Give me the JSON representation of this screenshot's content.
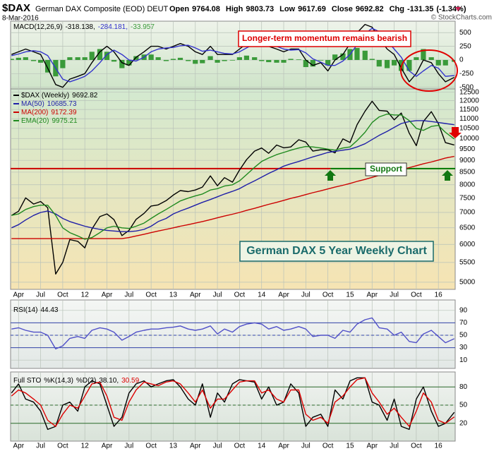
{
  "header": {
    "symbol": "$DAX",
    "name": "German DAX Composite (EOD) DEUT",
    "date": "8-Mar-2016",
    "copyright": "© StockCharts.com",
    "stats": [
      {
        "label": "Open",
        "value": 9764.08
      },
      {
        "label": "High",
        "value": 9803.73
      },
      {
        "label": "Low",
        "value": 9617.69
      },
      {
        "label": "Close",
        "value": 9692.82
      },
      {
        "label": "Chg",
        "value": -131.35
      }
    ],
    "change_pct": "(-1.34%)"
  },
  "chart_data": {
    "type": "line",
    "grid": true,
    "x": [
      2011.17,
      2011.25,
      2011.33,
      2011.42,
      2011.5,
      2011.58,
      2011.67,
      2011.75,
      2011.83,
      2011.92,
      2012.0,
      2012.08,
      2012.17,
      2012.25,
      2012.33,
      2012.42,
      2012.5,
      2012.58,
      2012.67,
      2012.75,
      2012.83,
      2012.92,
      2013.0,
      2013.08,
      2013.17,
      2013.25,
      2013.33,
      2013.42,
      2013.5,
      2013.58,
      2013.67,
      2013.75,
      2013.83,
      2013.92,
      2014.0,
      2014.08,
      2014.17,
      2014.25,
      2014.33,
      2014.42,
      2014.5,
      2014.58,
      2014.67,
      2014.75,
      2014.83,
      2014.92,
      2015.0,
      2015.08,
      2015.17,
      2015.25,
      2015.33,
      2015.42,
      2015.5,
      2015.58,
      2015.67,
      2015.75,
      2015.83,
      2015.92,
      2016.0,
      2016.08,
      2016.18
    ],
    "xlim": [
      2011.16,
      2016.19
    ],
    "xticks": [
      {
        "value": 2011.25,
        "label": "Apr"
      },
      {
        "value": 2011.5,
        "label": "Jul"
      },
      {
        "value": 2011.75,
        "label": "Oct"
      },
      {
        "value": 2012,
        "label": "12"
      },
      {
        "value": 2012.25,
        "label": "Apr"
      },
      {
        "value": 2012.5,
        "label": "Jul"
      },
      {
        "value": 2012.75,
        "label": "Oct"
      },
      {
        "value": 2013,
        "label": "13"
      },
      {
        "value": 2013.25,
        "label": "Apr"
      },
      {
        "value": 2013.5,
        "label": "Jul"
      },
      {
        "value": 2013.75,
        "label": "Oct"
      },
      {
        "value": 2014,
        "label": "14"
      },
      {
        "value": 2014.25,
        "label": "Apr"
      },
      {
        "value": 2014.5,
        "label": "Jul"
      },
      {
        "value": 2014.75,
        "label": "Oct"
      },
      {
        "value": 2015,
        "label": "15"
      },
      {
        "value": 2015.25,
        "label": "Apr"
      },
      {
        "value": 2015.5,
        "label": "Jul"
      },
      {
        "value": 2015.75,
        "label": "Oct"
      },
      {
        "value": 2016,
        "label": "16"
      }
    ],
    "panels": [
      {
        "title": "MACD(12,26,9)",
        "legend": "inline",
        "annotation": "Longer-term momentum remains bearish",
        "ylim": [
          -530,
          710
        ],
        "yticks": [
          -500,
          -250,
          0,
          250,
          500
        ],
        "series": [
          {
            "type": "bar",
            "color": "#3a9a3a",
            "legend_value": "-33.957",
            "values": [
              20,
              40,
              50,
              -20,
              -50,
              -230,
              -300,
              -150,
              50,
              50,
              50,
              150,
              200,
              150,
              -30,
              -150,
              -100,
              70,
              100,
              100,
              50,
              -20,
              20,
              40,
              -20,
              -70,
              -60,
              70,
              -50,
              -20,
              -10,
              50,
              80,
              50,
              -20,
              -40,
              -50,
              -50,
              20,
              10,
              -130,
              -120,
              -10,
              -100,
              100,
              120,
              200,
              220,
              170,
              20,
              -120,
              -150,
              -100,
              -200,
              -200,
              50,
              200,
              50,
              -100,
              -100,
              -33.957
            ]
          },
          {
            "type": "line",
            "color": "#000000",
            "legend_value": "-318.138,",
            "values": [
              100,
              150,
              200,
              150,
              100,
              -150,
              -450,
              -500,
              -350,
              -300,
              -250,
              -50,
              150,
              250,
              150,
              -50,
              -100,
              50,
              150,
              250,
              250,
              200,
              250,
              300,
              250,
              150,
              100,
              250,
              100,
              100,
              100,
              200,
              300,
              350,
              300,
              250,
              200,
              150,
              200,
              200,
              0,
              -100,
              -50,
              -200,
              0,
              100,
              300,
              500,
              650,
              600,
              400,
              200,
              100,
              -150,
              -400,
              -250,
              0,
              -50,
              -250,
              -400,
              -318.138
            ]
          },
          {
            "type": "line",
            "color": "#3333cc",
            "legend_value": "-284.181,",
            "values": [
              80,
              110,
              150,
              170,
              150,
              80,
              -150,
              -350,
              -400,
              -350,
              -300,
              -200,
              -50,
              100,
              180,
              100,
              0,
              -20,
              50,
              150,
              200,
              220,
              230,
              260,
              270,
              220,
              160,
              180,
              150,
              120,
              110,
              150,
              220,
              300,
              320,
              290,
              250,
              200,
              180,
              190,
              130,
              20,
              -40,
              -100,
              -100,
              -20,
              100,
              280,
              480,
              580,
              520,
              350,
              200,
              50,
              -200,
              -300,
              -200,
              -100,
              -150,
              -300,
              -284.181
            ]
          }
        ],
        "legend_order": [
          1,
          2,
          0
        ]
      },
      {
        "legend": "stacked",
        "log": true,
        "annotations": [
          "Support",
          "German DAX 5 Year Weekly Chart"
        ],
        "ylim": [
          4830,
          12700
        ],
        "yticks": [
          5000,
          5500,
          6000,
          6500,
          7000,
          7500,
          8000,
          8500,
          9000,
          9500,
          10000,
          10500,
          11000,
          11500,
          12000,
          12500
        ],
        "ref_lines": [
          {
            "value": 8650,
            "color": "#cc0000",
            "from": 2011.16,
            "to": 2014.78
          },
          {
            "value": 8650,
            "color": "#007700",
            "from": 2014.78,
            "to": 2016.19
          }
        ],
        "series": [
          {
            "name": "$DAX (Weekly)",
            "type": "line",
            "color": "#000000",
            "legend_value": 9692.82,
            "values": [
              6900,
              7040,
              7510,
              7290,
              7380,
              7160,
              5200,
              5500,
              6140,
              6090,
              5900,
              6460,
              6860,
              6950,
              6760,
              6260,
              6420,
              6770,
              6970,
              7220,
              7260,
              7410,
              7610,
              7780,
              7740,
              7800,
              7910,
              8350,
              7960,
              8280,
              8100,
              8590,
              9030,
              9410,
              9550,
              9310,
              9690,
              9560,
              9600,
              9940,
              9830,
              9410,
              9470,
              9470,
              9330,
              9980,
              9810,
              10690,
              11400,
              11970,
              11450,
              11410,
              10940,
              11310,
              10260,
              9660,
              10850,
              11380,
              10740,
              9800,
              9692.82
            ]
          },
          {
            "name": "MA(50)",
            "type": "line",
            "color": "#1f1fa8",
            "legend_value": 10685.73,
            "values": [
              6500,
              6600,
              6750,
              6900,
              7000,
              7050,
              6950,
              6800,
              6700,
              6620,
              6550,
              6500,
              6450,
              6420,
              6400,
              6380,
              6380,
              6400,
              6450,
              6550,
              6700,
              6800,
              6950,
              7050,
              7150,
              7250,
              7350,
              7450,
              7550,
              7650,
              7750,
              7850,
              8000,
              8150,
              8300,
              8450,
              8600,
              8750,
              8850,
              8950,
              9050,
              9150,
              9250,
              9350,
              9400,
              9450,
              9500,
              9600,
              9750,
              9950,
              10150,
              10350,
              10550,
              10750,
              10850,
              10900,
              10900,
              10850,
              10800,
              10750,
              10685.73
            ]
          },
          {
            "name": "MA(200)",
            "type": "line",
            "color": "#cc0000",
            "legend_value": 9172.39,
            "values": [
              6170,
              6170,
              6170,
              6170,
              6170,
              6170,
              6170,
              6170,
              6170,
              6170,
              6170,
              6170,
              6170,
              6170,
              6170,
              6170,
              6200,
              6250,
              6300,
              6350,
              6400,
              6450,
              6500,
              6550,
              6600,
              6650,
              6700,
              6760,
              6820,
              6880,
              6940,
              7000,
              7070,
              7140,
              7210,
              7280,
              7350,
              7420,
              7490,
              7560,
              7630,
              7700,
              7770,
              7840,
              7910,
              7980,
              8050,
              8130,
              8210,
              8290,
              8370,
              8450,
              8530,
              8610,
              8690,
              8770,
              8850,
              8930,
              9010,
              9100,
              9172.39
            ]
          },
          {
            "name": "EMA(20)",
            "type": "line",
            "color": "#1f8a1f",
            "legend_value": 9975.21,
            "values": [
              6900,
              6950,
              7100,
              7200,
              7250,
              7250,
              6900,
              6500,
              6350,
              6250,
              6150,
              6200,
              6350,
              6500,
              6550,
              6500,
              6480,
              6550,
              6650,
              6800,
              6950,
              7100,
              7250,
              7400,
              7500,
              7580,
              7650,
              7800,
              7850,
              7950,
              8000,
              8150,
              8400,
              8700,
              8950,
              9100,
              9250,
              9350,
              9450,
              9550,
              9620,
              9600,
              9550,
              9500,
              9450,
              9550,
              9600,
              9900,
              10300,
              10800,
              11100,
              11250,
              11200,
              11200,
              10900,
              10500,
              10400,
              10600,
              10650,
              10300,
              9975.21
            ]
          }
        ]
      },
      {
        "legend": "inline",
        "ylim": [
          0,
          100
        ],
        "yticks": [
          10,
          30,
          50,
          70,
          90
        ],
        "ref_lines": [
          {
            "value": 70,
            "color": "#3344aa"
          },
          {
            "value": 30,
            "color": "#3344aa"
          },
          {
            "value": 50,
            "color": "#3344aa",
            "style": "dashed"
          }
        ],
        "series": [
          {
            "name": "RSI(14)",
            "type": "line",
            "color": "#5050c8",
            "legend_value": 44.43,
            "values": [
              60,
              62,
              58,
              55,
              55,
              50,
              28,
              33,
              45,
              48,
              45,
              58,
              62,
              60,
              55,
              42,
              48,
              55,
              58,
              60,
              60,
              62,
              63,
              65,
              60,
              58,
              60,
              65,
              52,
              60,
              55,
              64,
              68,
              70,
              68,
              60,
              64,
              58,
              60,
              64,
              60,
              48,
              50,
              50,
              45,
              58,
              55,
              68,
              75,
              78,
              62,
              60,
              50,
              55,
              40,
              38,
              52,
              58,
              48,
              38,
              44.43
            ]
          }
        ]
      },
      {
        "title": "Full STO",
        "legend": "inline",
        "ylim": [
          0,
          100
        ],
        "yticks": [
          20,
          50,
          80
        ],
        "ref_lines": [
          {
            "value": 80,
            "color": "#2a6a2a"
          },
          {
            "value": 20,
            "color": "#2a6a2a"
          },
          {
            "value": 50,
            "color": "#2a6a2a",
            "style": "dashed"
          }
        ],
        "series": [
          {
            "name": "%K(14,3)",
            "type": "line",
            "color": "#000000",
            "legend_value": "38.10,",
            "values": [
              70,
              85,
              60,
              55,
              40,
              10,
              15,
              50,
              55,
              40,
              80,
              90,
              85,
              50,
              15,
              30,
              70,
              85,
              90,
              80,
              85,
              90,
              92,
              80,
              60,
              50,
              85,
              30,
              70,
              55,
              85,
              92,
              90,
              88,
              60,
              80,
              50,
              55,
              85,
              70,
              15,
              30,
              35,
              15,
              75,
              60,
              90,
              95,
              95,
              55,
              50,
              25,
              60,
              15,
              10,
              60,
              80,
              40,
              15,
              20,
              38.1
            ]
          },
          {
            "name": "%D(3)",
            "type": "line",
            "color": "#dd0000",
            "legend_value": "30.59",
            "values": [
              65,
              75,
              70,
              60,
              50,
              25,
              15,
              35,
              50,
              45,
              65,
              85,
              88,
              65,
              30,
              25,
              55,
              75,
              88,
              85,
              82,
              88,
              90,
              85,
              70,
              55,
              75,
              45,
              60,
              60,
              75,
              88,
              90,
              90,
              70,
              75,
              60,
              55,
              75,
              75,
              35,
              25,
              30,
              20,
              55,
              65,
              80,
              92,
              95,
              70,
              55,
              35,
              45,
              30,
              15,
              40,
              70,
              55,
              25,
              20,
              30.59
            ]
          }
        ]
      }
    ]
  }
}
